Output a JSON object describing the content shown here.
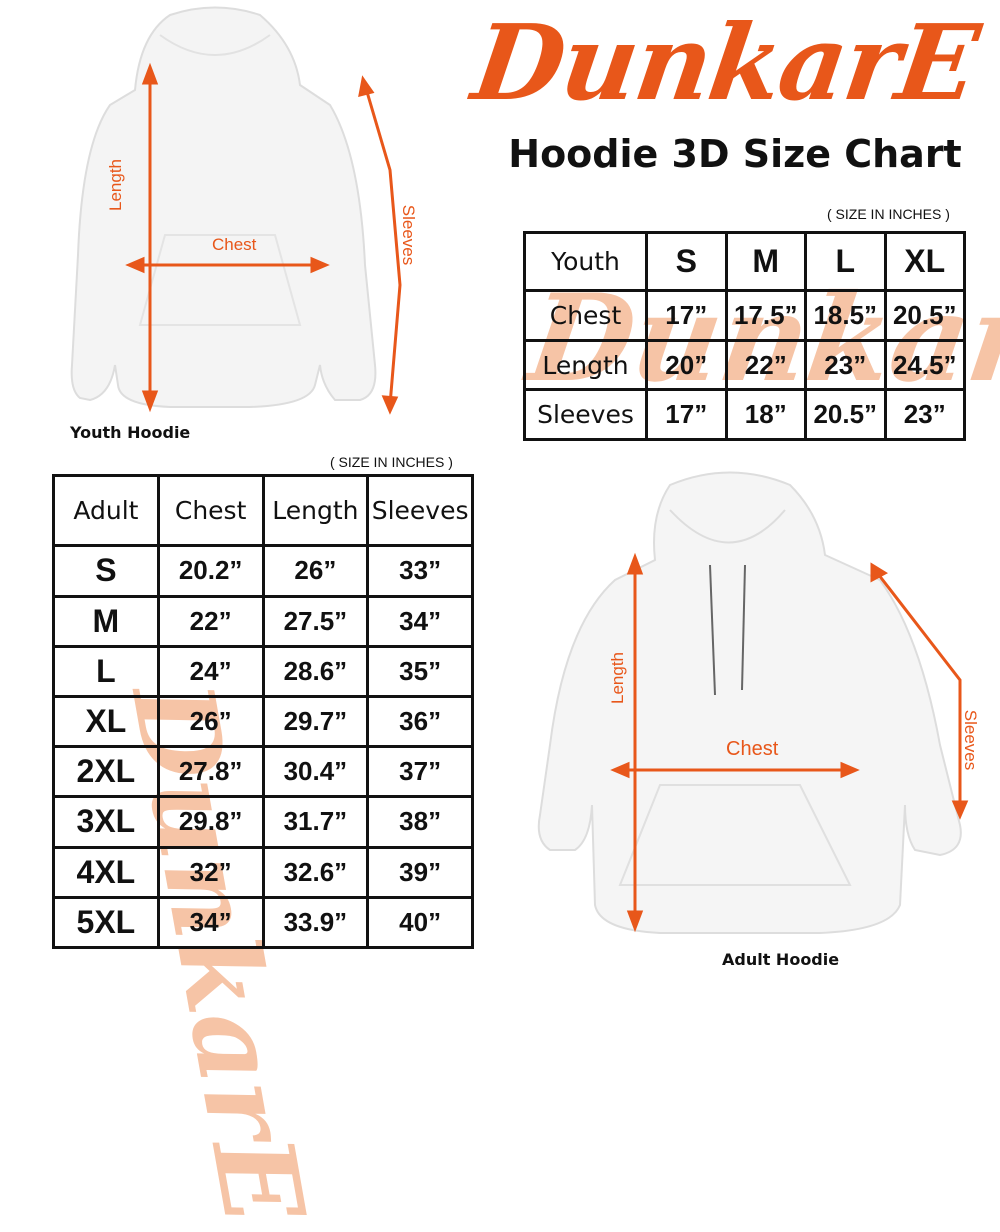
{
  "brand": {
    "logo_text": "DunkarE",
    "color": "#e8571a",
    "watermark_color": "#f6c4a6"
  },
  "title": "Hoodie 3D Size Chart",
  "youth": {
    "caption": "Youth Hoodie",
    "unit_note": "( SIZE IN INCHES )",
    "labels": {
      "length": "Length",
      "chest": "Chest",
      "sleeves": "Sleeves"
    },
    "table": {
      "header": [
        "Youth",
        "S",
        "M",
        "L",
        "XL"
      ],
      "rows": [
        [
          "Chest",
          "17”",
          "17.5”",
          "18.5”",
          "20.5”"
        ],
        [
          "Length",
          "20”",
          "22”",
          "23”",
          "24.5”"
        ],
        [
          "Sleeves",
          "17”",
          "18”",
          "20.5”",
          "23”"
        ]
      ]
    }
  },
  "adult": {
    "caption": "Adult Hoodie",
    "unit_note": "( SIZE IN INCHES )",
    "labels": {
      "length": "Length",
      "chest": "Chest",
      "sleeves": "Sleeves"
    },
    "table": {
      "header": [
        "Adult",
        "Chest",
        "Length",
        "Sleeves"
      ],
      "rows": [
        [
          "S",
          "20.2”",
          "26”",
          "33”"
        ],
        [
          "M",
          "22”",
          "27.5”",
          "34”"
        ],
        [
          "L",
          "24”",
          "28.6”",
          "35”"
        ],
        [
          "XL",
          "26”",
          "29.7”",
          "36”"
        ],
        [
          "2XL",
          "27.8”",
          "30.4”",
          "37”"
        ],
        [
          "3XL",
          "29.8”",
          "31.7”",
          "38”"
        ],
        [
          "4XL",
          "32”",
          "32.6”",
          "39”"
        ],
        [
          "5XL",
          "34”",
          "33.9”",
          "40”"
        ]
      ]
    }
  }
}
